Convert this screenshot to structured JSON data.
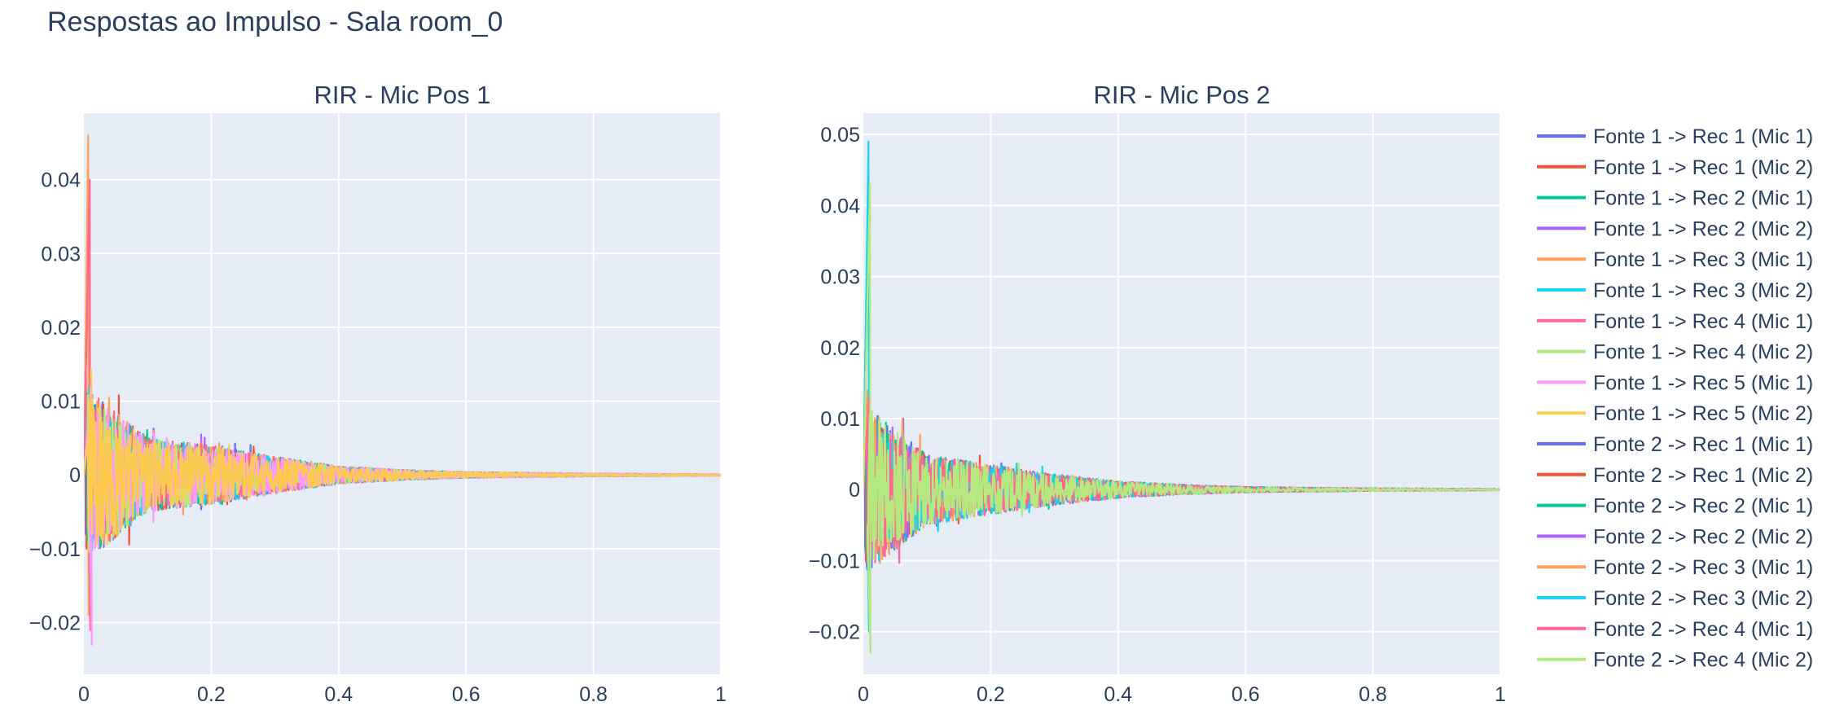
{
  "title": "Respostas ao Impulso - Sala room_0",
  "chart_data": [
    {
      "type": "line",
      "title": "RIR - Mic Pos 1",
      "xlabel": "",
      "ylabel": "",
      "xlim": [
        0,
        1
      ],
      "ylim": [
        -0.027,
        0.049
      ],
      "x_ticks": [
        0,
        0.2,
        0.4,
        0.6,
        0.8,
        1
      ],
      "x_tick_labels": [
        "0",
        "0.2",
        "0.4",
        "0.6",
        "0.8",
        "1"
      ],
      "y_ticks": [
        -0.02,
        -0.01,
        0,
        0.01,
        0.02,
        0.03,
        0.04
      ],
      "y_tick_labels": [
        "−0.02",
        "−0.01",
        "0",
        "0.01",
        "0.02",
        "0.03",
        "0.04"
      ],
      "grid": true,
      "series_peaks": [
        {
          "name": "Fonte 1 -> Rec 1 (Mic 1)",
          "max": 0.012,
          "min": -0.008
        },
        {
          "name": "Fonte 1 -> Rec 1 (Mic 2)",
          "max": 0.014,
          "min": -0.01
        },
        {
          "name": "Fonte 1 -> Rec 2 (Mic 1)",
          "max": 0.011,
          "min": -0.009
        },
        {
          "name": "Fonte 1 -> Rec 2 (Mic 2)",
          "max": 0.01,
          "min": -0.008
        },
        {
          "name": "Fonte 1 -> Rec 3 (Mic 1)",
          "max": 0.046,
          "min": -0.019
        },
        {
          "name": "Fonte 1 -> Rec 3 (Mic 2)",
          "max": 0.012,
          "min": -0.009
        },
        {
          "name": "Fonte 1 -> Rec 4 (Mic 1)",
          "max": 0.04,
          "min": -0.021
        },
        {
          "name": "Fonte 1 -> Rec 4 (Mic 2)",
          "max": 0.011,
          "min": -0.009
        },
        {
          "name": "Fonte 1 -> Rec 5 (Mic 1)",
          "max": 0.013,
          "min": -0.023
        },
        {
          "name": "Fonte 1 -> Rec 5 (Mic 2)",
          "max": 0.01,
          "min": -0.008
        }
      ],
      "decay_envelope": {
        "t": [
          0,
          0.1,
          0.2,
          0.3,
          0.4,
          0.5,
          0.6,
          0.8,
          1.0
        ],
        "amplitude": [
          0.012,
          0.005,
          0.004,
          0.0025,
          0.0012,
          0.0007,
          0.0004,
          0.0002,
          0.0001
        ]
      }
    },
    {
      "type": "line",
      "title": "RIR - Mic Pos 2",
      "xlabel": "",
      "ylabel": "",
      "xlim": [
        0,
        1
      ],
      "ylim": [
        -0.026,
        0.053
      ],
      "x_ticks": [
        0,
        0.2,
        0.4,
        0.6,
        0.8,
        1
      ],
      "x_tick_labels": [
        "0",
        "0.2",
        "0.4",
        "0.6",
        "0.8",
        "1"
      ],
      "y_ticks": [
        -0.02,
        -0.01,
        0,
        0.01,
        0.02,
        0.03,
        0.04,
        0.05
      ],
      "y_tick_labels": [
        "−0.02",
        "−0.01",
        "0",
        "0.01",
        "0.02",
        "0.03",
        "0.04",
        "0.05"
      ],
      "grid": true,
      "series_peaks": [
        {
          "name": "Fonte 2 -> Rec 1 (Mic 1)",
          "max": 0.012,
          "min": -0.008
        },
        {
          "name": "Fonte 2 -> Rec 1 (Mic 2)",
          "max": 0.02,
          "min": -0.01
        },
        {
          "name": "Fonte 2 -> Rec 2 (Mic 1)",
          "max": 0.012,
          "min": -0.009
        },
        {
          "name": "Fonte 2 -> Rec 2 (Mic 2)",
          "max": 0.011,
          "min": -0.011
        },
        {
          "name": "Fonte 2 -> Rec 3 (Mic 1)",
          "max": 0.014,
          "min": -0.01
        },
        {
          "name": "Fonte 2 -> Rec 3 (Mic 2)",
          "max": 0.049,
          "min": -0.02
        },
        {
          "name": "Fonte 2 -> Rec 4 (Mic 1)",
          "max": 0.013,
          "min": -0.009
        },
        {
          "name": "Fonte 2 -> Rec 4 (Mic 2)",
          "max": 0.043,
          "min": -0.023
        }
      ],
      "decay_envelope": {
        "t": [
          0,
          0.1,
          0.2,
          0.3,
          0.4,
          0.5,
          0.6,
          0.8,
          1.0
        ],
        "amplitude": [
          0.012,
          0.005,
          0.0035,
          0.0022,
          0.0012,
          0.0007,
          0.0004,
          0.0002,
          0.0001
        ]
      }
    }
  ],
  "legend": {
    "placement": "right",
    "entries": [
      {
        "label": "Fonte 1 -> Rec 1 (Mic 1)",
        "color": "#636efa"
      },
      {
        "label": "Fonte 1 -> Rec 1 (Mic 2)",
        "color": "#EF553B"
      },
      {
        "label": "Fonte 1 -> Rec 2 (Mic 1)",
        "color": "#00cc96"
      },
      {
        "label": "Fonte 1 -> Rec 2 (Mic 2)",
        "color": "#ab63fa"
      },
      {
        "label": "Fonte 1 -> Rec 3 (Mic 1)",
        "color": "#FFA15A"
      },
      {
        "label": "Fonte 1 -> Rec 3 (Mic 2)",
        "color": "#19d3f3"
      },
      {
        "label": "Fonte 1 -> Rec 4 (Mic 1)",
        "color": "#FF6692"
      },
      {
        "label": "Fonte 1 -> Rec 4 (Mic 2)",
        "color": "#B6E880"
      },
      {
        "label": "Fonte 1 -> Rec 5 (Mic 1)",
        "color": "#FF97FF"
      },
      {
        "label": "Fonte 1 -> Rec 5 (Mic 2)",
        "color": "#FECB52"
      },
      {
        "label": "Fonte 2 -> Rec 1 (Mic 1)",
        "color": "#636efa"
      },
      {
        "label": "Fonte 2 -> Rec 1 (Mic 2)",
        "color": "#EF553B"
      },
      {
        "label": "Fonte 2 -> Rec 2 (Mic 1)",
        "color": "#00cc96"
      },
      {
        "label": "Fonte 2 -> Rec 2 (Mic 2)",
        "color": "#ab63fa"
      },
      {
        "label": "Fonte 2 -> Rec 3 (Mic 1)",
        "color": "#FFA15A"
      },
      {
        "label": "Fonte 2 -> Rec 3 (Mic 2)",
        "color": "#19d3f3"
      },
      {
        "label": "Fonte 2 -> Rec 4 (Mic 1)",
        "color": "#FF6692"
      },
      {
        "label": "Fonte 2 -> Rec 4 (Mic 2)",
        "color": "#B6E880"
      }
    ]
  },
  "colors": {
    "plot_background": "#E5ECF6",
    "grid": "#ffffff",
    "text": "#2a3f5f"
  }
}
